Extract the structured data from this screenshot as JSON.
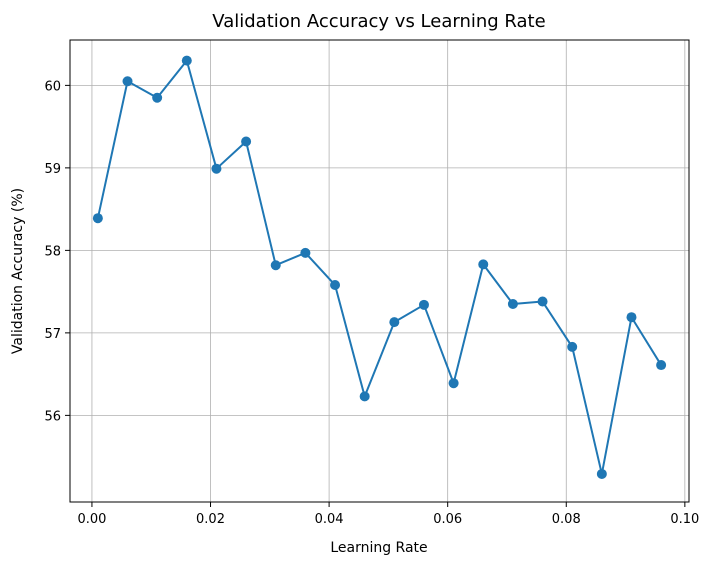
{
  "chart_data": {
    "type": "line",
    "title": "Validation Accuracy vs Learning Rate",
    "xlabel": "Learning Rate",
    "ylabel": "Validation Accuracy (%)",
    "xlim": [
      -0.0037,
      0.1007
    ],
    "ylim": [
      54.95,
      60.55
    ],
    "x_ticks": [
      0.0,
      0.02,
      0.04,
      0.06,
      0.08,
      0.1
    ],
    "x_tick_labels": [
      "0.00",
      "0.02",
      "0.04",
      "0.06",
      "0.08",
      "0.10"
    ],
    "y_ticks": [
      56,
      57,
      58,
      59,
      60
    ],
    "y_tick_labels": [
      "56",
      "57",
      "58",
      "59",
      "60"
    ],
    "grid": true,
    "color": "#1f77b4",
    "marker": "circle",
    "series": [
      {
        "x": [
          0.001,
          0.006,
          0.011,
          0.016,
          0.021,
          0.026,
          0.031,
          0.036,
          0.041,
          0.046,
          0.051,
          0.056,
          0.061,
          0.066,
          0.071,
          0.076,
          0.081,
          0.086,
          0.091,
          0.096
        ],
        "values": [
          58.39,
          60.05,
          59.85,
          60.3,
          58.99,
          59.32,
          57.82,
          57.97,
          57.58,
          56.23,
          57.13,
          57.34,
          56.39,
          57.83,
          57.35,
          57.38,
          56.83,
          55.29,
          57.19,
          56.61
        ]
      }
    ]
  }
}
